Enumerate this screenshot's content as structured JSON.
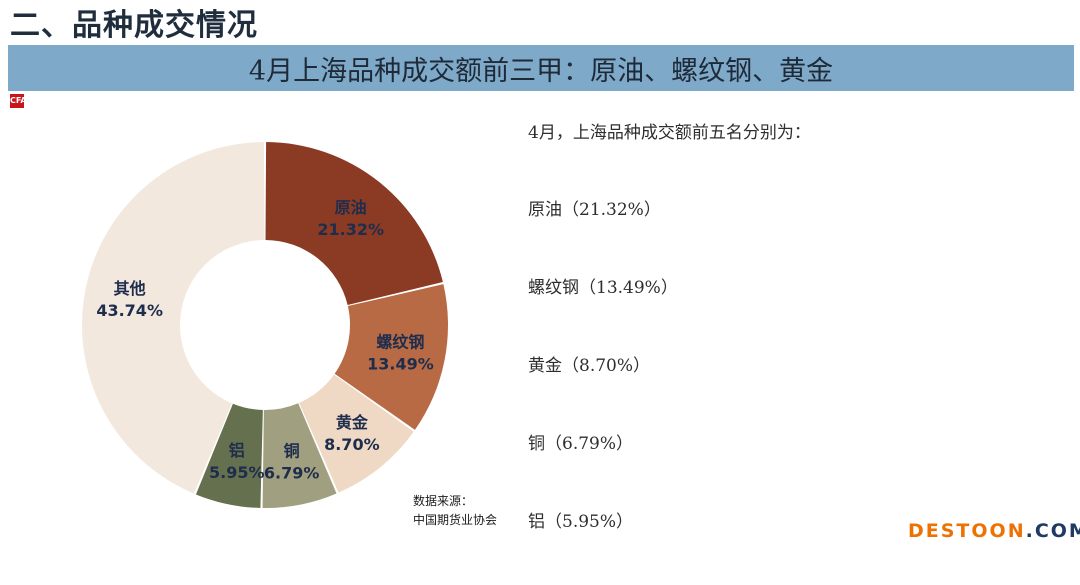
{
  "section_title": "二、品种成交情况",
  "banner_title": "4月上海品种成交额前三甲：原油、螺纹钢、黄金",
  "logo_text": "CFA",
  "source": {
    "line1": "数据来源：",
    "line2": "中国期货业协会"
  },
  "summary": {
    "intro": "4月，上海品种成交额前五名分别为：",
    "items": [
      "原油（21.32%）",
      "螺纹钢（13.49%）",
      "黄金（8.70%）",
      "铜（6.79%）",
      "铝（5.95%）"
    ]
  },
  "watermark": {
    "part1": "DESTOON",
    "part2": ".COM"
  },
  "colors": {
    "banner": "#7fa9c8",
    "label": "#1f2d4d",
    "slices": [
      "#8b3a24",
      "#b86a44",
      "#efd9c4",
      "#a09f7f",
      "#64704e",
      "#f3e8dd"
    ]
  },
  "chart_data": {
    "type": "pie",
    "donut": true,
    "categories": [
      "原油",
      "螺纹钢",
      "黄金",
      "铜",
      "铝",
      "其他"
    ],
    "values": [
      21.32,
      13.49,
      8.7,
      6.79,
      5.95,
      43.74
    ],
    "value_labels": [
      "21.32%",
      "13.49%",
      "8.70%",
      "6.79%",
      "5.95%",
      "43.74%"
    ],
    "title": "",
    "legend": "none"
  }
}
